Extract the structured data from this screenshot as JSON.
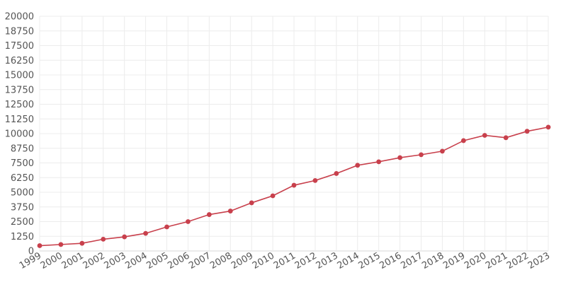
{
  "chart_data": {
    "type": "line",
    "title": "",
    "xlabel": "",
    "ylabel": "",
    "x": [
      "1999",
      "2000",
      "2001",
      "2002",
      "2003",
      "2004",
      "2005",
      "2006",
      "2007",
      "2008",
      "2009",
      "2010",
      "2011",
      "2012",
      "2013",
      "2014",
      "2015",
      "2016",
      "2017",
      "2018",
      "2019",
      "2020",
      "2021",
      "2022",
      "2023"
    ],
    "series": [
      {
        "values": [
          450,
          550,
          650,
          1000,
          1200,
          1500,
          2050,
          2500,
          3100,
          3400,
          4100,
          4700,
          5600,
          6000,
          6600,
          7300,
          7600,
          7950,
          8200,
          8500,
          9400,
          9850,
          9650,
          10200,
          10550
        ],
        "color": "#c8404c"
      }
    ],
    "ylim": [
      0,
      20000
    ],
    "y_ticks": [
      0,
      1250,
      2500,
      3750,
      5000,
      6250,
      7500,
      8750,
      10000,
      11250,
      12500,
      13750,
      15000,
      16250,
      17500,
      18750,
      20000
    ],
    "grid": true,
    "x_tick_rotation": "diagonal",
    "legend": "none"
  }
}
